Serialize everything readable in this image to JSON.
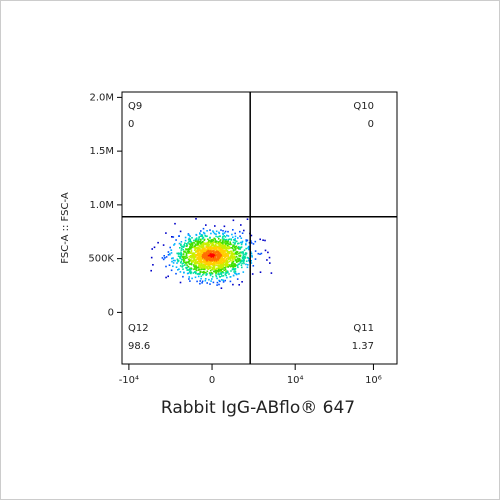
{
  "chart_data": {
    "type": "flow-dot-plot",
    "x_label": "Rabbit IgG-ABflo® 647",
    "y_label": "FSC-A :: FSC-A",
    "x_scale": "biexponential",
    "xlim": [
      -15000,
      4000000
    ],
    "xticks": [
      {
        "value": -10000,
        "label": "-10⁴"
      },
      0,
      {
        "value": 10000,
        "label": "10⁴"
      },
      {
        "value": 1000000,
        "label": "10⁶"
      }
    ],
    "ylim": [
      -480000,
      2050000
    ],
    "yticks": [
      0,
      {
        "value": 500000,
        "label": "500K"
      },
      {
        "value": 1000000,
        "label": "1.0M"
      },
      {
        "value": 1500000,
        "label": "1.5M"
      },
      {
        "value": 2000000,
        "label": "2.0M"
      }
    ],
    "gate_x": 700,
    "gate_y": 890000,
    "quadrants": [
      {
        "label": "Q9",
        "value": 0,
        "corner": "top-left"
      },
      {
        "label": "Q10",
        "value": 0,
        "corner": "top-right"
      },
      {
        "label": "Q12",
        "value": 98.6,
        "corner": "bottom-left"
      },
      {
        "label": "Q11",
        "value": 1.37,
        "corner": "bottom-right"
      }
    ]
  }
}
